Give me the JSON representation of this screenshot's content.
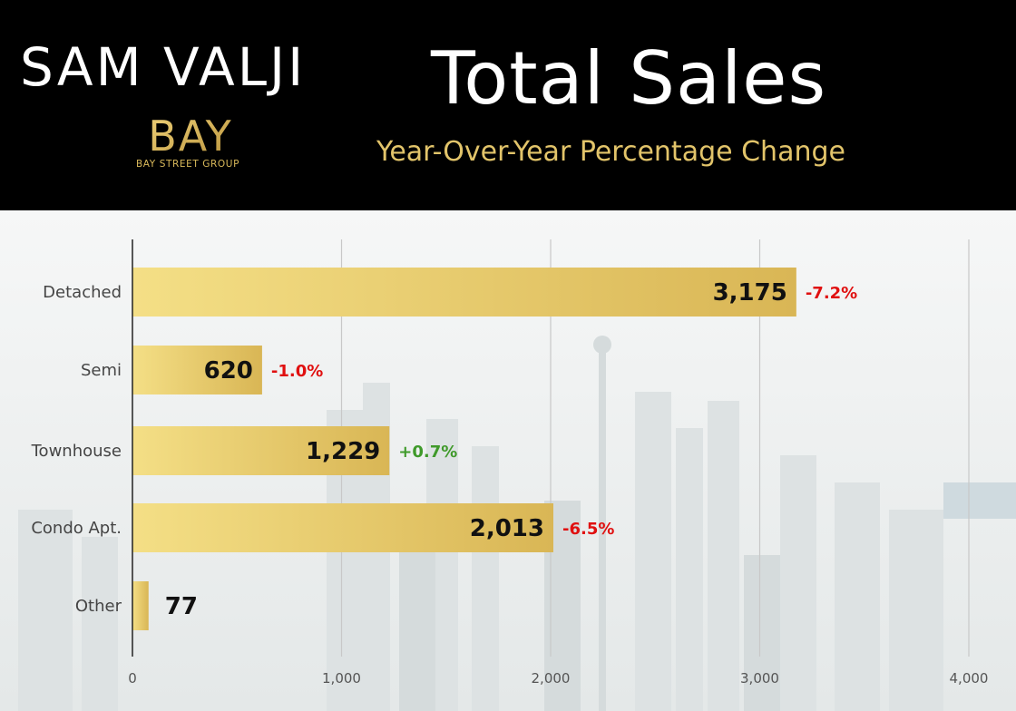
{
  "header": {
    "brand_name": "SAM VALJI",
    "logo_text": "BAY",
    "logo_subtext": "BAY STREET GROUP"
  },
  "colors": {
    "header_bg": "#000000",
    "title": "#ffffff",
    "subtitle": "#e2c46a",
    "bar_light": "#f4df86",
    "bar_dark": "#d9b655",
    "negative": "#e01010",
    "positive": "#3f9a2a"
  },
  "chart_data": {
    "type": "bar",
    "orientation": "horizontal",
    "title": "Total Sales",
    "subtitle": "Year-Over-Year Percentage Change",
    "categories": [
      "Detached",
      "Semi",
      "Townhouse",
      "Condo Apt.",
      "Other"
    ],
    "values": [
      3175,
      620,
      1229,
      2013,
      77
    ],
    "value_labels": [
      "3,175",
      "620",
      "1,229",
      "2,013",
      "77"
    ],
    "changes": [
      "-7.2%",
      "-1.0%",
      "+0.7%",
      "-6.5%",
      ""
    ],
    "change_signs": [
      "negative",
      "negative",
      "positive",
      "negative",
      "none"
    ],
    "xlim": [
      0,
      4000
    ],
    "xticks": [
      0,
      1000,
      2000,
      3000,
      4000
    ],
    "xtick_labels": [
      "0",
      "1,000",
      "2,000",
      "3,000",
      "4,000"
    ],
    "grid": true,
    "legend": "none"
  }
}
